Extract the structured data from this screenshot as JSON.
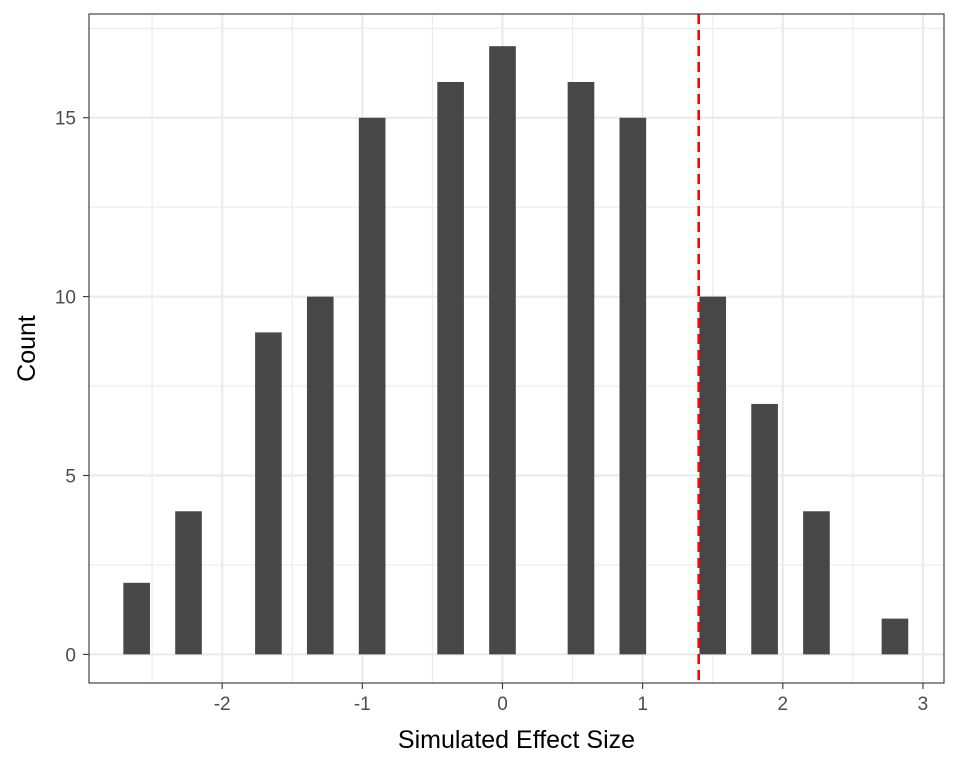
{
  "chart_data": {
    "type": "bar",
    "title": "",
    "xlabel": "Simulated Effect Size",
    "ylabel": "Count",
    "x": [
      -2.61,
      -2.24,
      -1.67,
      -1.3,
      -0.93,
      -0.37,
      0.0,
      0.56,
      0.93,
      1.5,
      1.87,
      2.24,
      2.8
    ],
    "values": [
      2,
      4,
      9,
      10,
      15,
      16,
      17,
      16,
      15,
      10,
      7,
      4,
      1
    ],
    "bar_width": 0.19,
    "xlim": [
      -2.95,
      3.15
    ],
    "ylim": [
      -0.8,
      17.9
    ],
    "xticks": [
      -2,
      -1,
      0,
      1,
      2,
      3
    ],
    "xtick_labels": [
      "-2",
      "-1",
      "0",
      "1",
      "2",
      "3"
    ],
    "yticks": [
      0,
      5,
      10,
      15
    ],
    "ytick_labels": [
      "0",
      "5",
      "10",
      "15"
    ],
    "reference_line": {
      "x": 1.4,
      "style": "dashed",
      "color": "#ff0000"
    },
    "grid": true,
    "colors": {
      "bar": "#474747",
      "grid": "#ebebeb",
      "panel_border": "#333333"
    }
  }
}
